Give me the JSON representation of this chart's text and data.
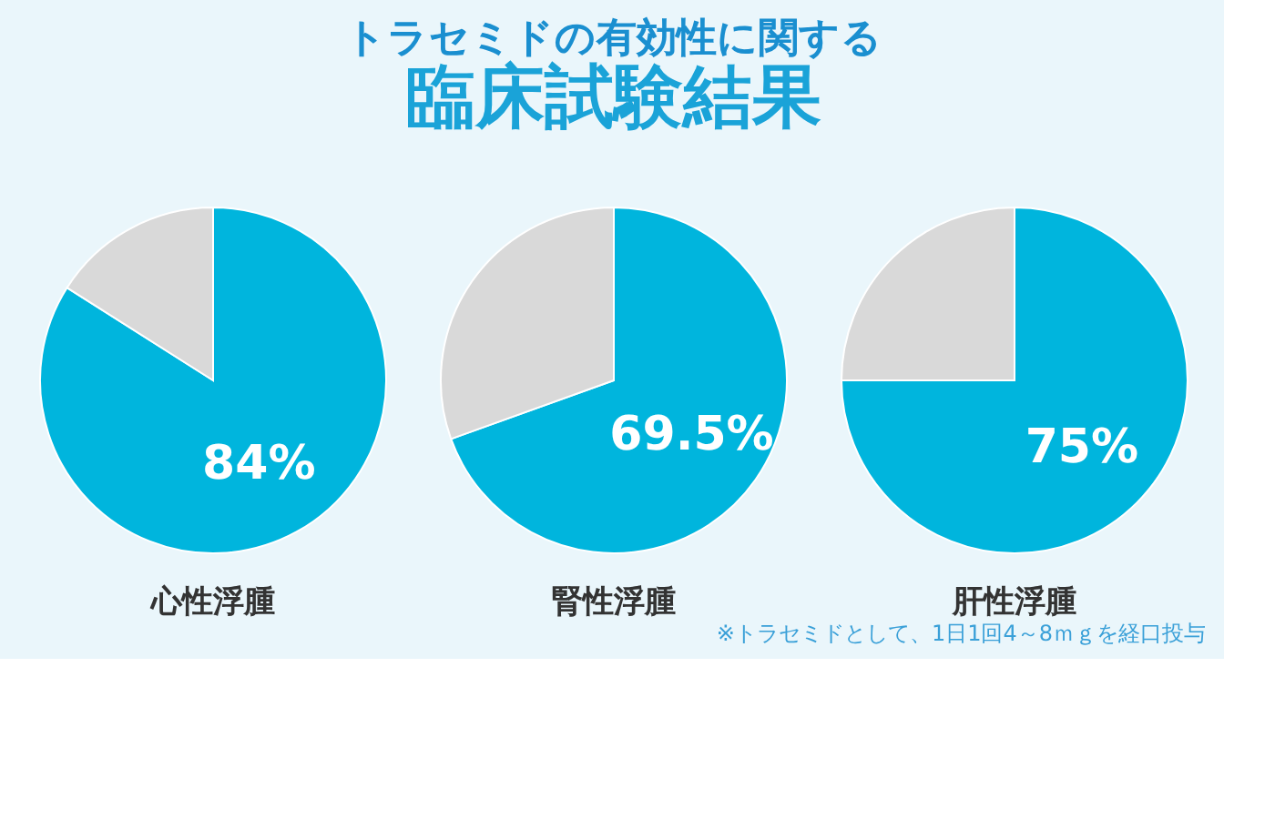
{
  "chart_data": [
    {
      "type": "pie",
      "xlabel": "心性浮腫",
      "categories": [
        null,
        null
      ],
      "values": [
        84,
        16
      ],
      "colors": [
        "#00b5dd",
        "#d9d9d9"
      ],
      "value_labels": [
        "84%",
        null
      ]
    },
    {
      "type": "pie",
      "title": "トラセミドの有効性に関する",
      "subtitle": "臨床試験結果",
      "xlabel": "腎性浮腫",
      "categories": [
        null,
        null
      ],
      "values": [
        69.5,
        30.5
      ],
      "colors": [
        "#00b5dd",
        "#d9d9d9"
      ],
      "value_labels": [
        "69.5%",
        null
      ]
    },
    {
      "type": "pie",
      "xlabel": "肝性浮腫",
      "categories": [
        null,
        null
      ],
      "values": [
        75,
        25
      ],
      "colors": [
        "#00b5dd",
        "#d9d9d9"
      ],
      "value_labels": [
        "75%",
        null
      ],
      "annotations": [
        "※トラセミドとして、1日1回4～8ｍｇを経口投与"
      ]
    }
  ]
}
